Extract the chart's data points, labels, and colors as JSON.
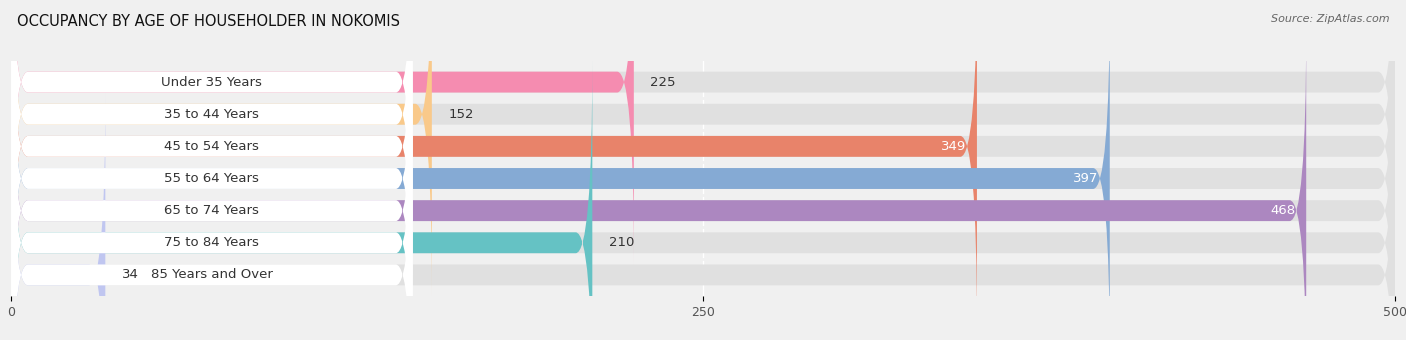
{
  "title": "OCCUPANCY BY AGE OF HOUSEHOLDER IN NOKOMIS",
  "source": "Source: ZipAtlas.com",
  "categories": [
    "Under 35 Years",
    "35 to 44 Years",
    "45 to 54 Years",
    "55 to 64 Years",
    "65 to 74 Years",
    "75 to 84 Years",
    "85 Years and Over"
  ],
  "values": [
    225,
    152,
    349,
    397,
    468,
    210,
    34
  ],
  "bar_colors": [
    "#f58cb0",
    "#f9c98a",
    "#e8836a",
    "#85aad4",
    "#ac87c0",
    "#65c2c4",
    "#c0c6f0"
  ],
  "xlim_max": 500,
  "xticks": [
    0,
    250,
    500
  ],
  "title_fontsize": 10.5,
  "label_fontsize": 9.5,
  "value_fontsize": 9.5,
  "bar_height": 0.65,
  "background_color": "#f0f0f0",
  "bar_bg_color": "#e0e0e0",
  "label_bg_color": "#ffffff",
  "value_colors_white": [
    2,
    3,
    4
  ],
  "grid_color": "#ffffff",
  "text_color": "#333333"
}
